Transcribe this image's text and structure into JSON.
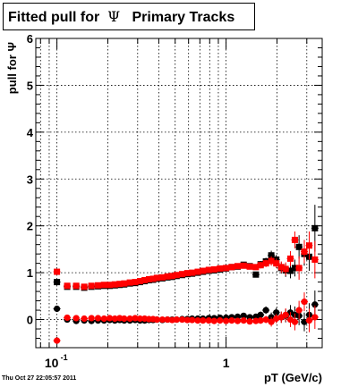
{
  "title": {
    "prefix": "Fitted pull for",
    "symbol": "Ψ",
    "suffix": "Primary Tracks"
  },
  "footer": {
    "date": "Thu Oct 27 22:05:57 2011"
  },
  "chart_data": {
    "type": "scatter",
    "title": "Fitted pull for Ψ Primary Tracks",
    "xlabel": "pT (GeV/c)",
    "ylabel": "pull for Ψ",
    "x_scale": "log",
    "xlim": [
      0.075,
      3.7
    ],
    "ylim": [
      -0.6,
      6
    ],
    "grid": true,
    "x_tick_labels": [
      {
        "value": 0.1,
        "base": "10",
        "exp": "-1"
      },
      {
        "value": 1,
        "base": "1",
        "exp": ""
      }
    ],
    "y_ticks": [
      0,
      1,
      2,
      3,
      4,
      5,
      6
    ],
    "series": [
      {
        "role": "sigma",
        "color": "#000000",
        "marker": "square",
        "points": [
          [
            0.1,
            0.8
          ],
          [
            0.115,
            0.7
          ],
          [
            0.13,
            0.7
          ],
          [
            0.145,
            0.68
          ],
          [
            0.16,
            0.7
          ],
          [
            0.175,
            0.71
          ],
          [
            0.19,
            0.72
          ],
          [
            0.205,
            0.72
          ],
          [
            0.22,
            0.73
          ],
          [
            0.235,
            0.74
          ],
          [
            0.25,
            0.75
          ],
          [
            0.27,
            0.77
          ],
          [
            0.29,
            0.78
          ],
          [
            0.31,
            0.8
          ],
          [
            0.33,
            0.82
          ],
          [
            0.35,
            0.84
          ],
          [
            0.37,
            0.85
          ],
          [
            0.39,
            0.87
          ],
          [
            0.42,
            0.88
          ],
          [
            0.45,
            0.9
          ],
          [
            0.48,
            0.91
          ],
          [
            0.51,
            0.93
          ],
          [
            0.55,
            0.95
          ],
          [
            0.59,
            0.97
          ],
          [
            0.63,
            0.98
          ],
          [
            0.68,
            1.0
          ],
          [
            0.73,
            1.02
          ],
          [
            0.79,
            1.04
          ],
          [
            0.85,
            1.05
          ],
          [
            0.92,
            1.07
          ],
          [
            1.0,
            1.09
          ],
          [
            1.08,
            1.12
          ],
          [
            1.17,
            1.13
          ],
          [
            1.27,
            1.17
          ],
          [
            1.38,
            1.14
          ],
          [
            1.5,
            0.96
          ],
          [
            1.6,
            1.18
          ],
          [
            1.72,
            1.24
          ],
          [
            1.85,
            1.37
          ],
          [
            1.98,
            1.28
          ],
          [
            2.12,
            1.1
          ],
          [
            2.25,
            1.05
          ],
          [
            2.4,
            1.04
          ],
          [
            2.55,
            1.1
          ],
          [
            2.7,
            1.55
          ],
          [
            2.9,
            1.4
          ],
          [
            3.1,
            1.34
          ],
          [
            3.35,
            1.95
          ]
        ],
        "err": [
          0.05,
          0.03,
          0.03,
          0.02,
          0.02,
          0.02,
          0.02,
          0.02,
          0.02,
          0.02,
          0.02,
          0.02,
          0.02,
          0.02,
          0.02,
          0.02,
          0.02,
          0.02,
          0.02,
          0.02,
          0.02,
          0.02,
          0.02,
          0.02,
          0.02,
          0.02,
          0.02,
          0.02,
          0.03,
          0.03,
          0.03,
          0.03,
          0.03,
          0.04,
          0.05,
          0.06,
          0.07,
          0.08,
          0.1,
          0.1,
          0.12,
          0.14,
          0.16,
          0.18,
          0.25,
          0.25,
          0.3,
          0.5
        ]
      },
      {
        "role": "sigma",
        "color": "#ff0000",
        "marker": "square",
        "points": [
          [
            0.1,
            1.02
          ],
          [
            0.115,
            0.72
          ],
          [
            0.13,
            0.72
          ],
          [
            0.145,
            0.7
          ],
          [
            0.16,
            0.72
          ],
          [
            0.175,
            0.73
          ],
          [
            0.19,
            0.74
          ],
          [
            0.205,
            0.74
          ],
          [
            0.22,
            0.75
          ],
          [
            0.235,
            0.76
          ],
          [
            0.25,
            0.77
          ],
          [
            0.27,
            0.79
          ],
          [
            0.29,
            0.8
          ],
          [
            0.31,
            0.82
          ],
          [
            0.33,
            0.84
          ],
          [
            0.35,
            0.86
          ],
          [
            0.37,
            0.87
          ],
          [
            0.39,
            0.89
          ],
          [
            0.42,
            0.9
          ],
          [
            0.45,
            0.92
          ],
          [
            0.48,
            0.93
          ],
          [
            0.51,
            0.95
          ],
          [
            0.55,
            0.97
          ],
          [
            0.59,
            0.99
          ],
          [
            0.63,
            1.0
          ],
          [
            0.68,
            1.02
          ],
          [
            0.73,
            1.04
          ],
          [
            0.79,
            1.06
          ],
          [
            0.85,
            1.07
          ],
          [
            0.92,
            1.09
          ],
          [
            1.0,
            1.1
          ],
          [
            1.08,
            1.12
          ],
          [
            1.17,
            1.14
          ],
          [
            1.27,
            1.15
          ],
          [
            1.38,
            1.13
          ],
          [
            1.5,
            1.12
          ],
          [
            1.6,
            1.16
          ],
          [
            1.72,
            1.2
          ],
          [
            1.85,
            1.25
          ],
          [
            1.98,
            1.2
          ],
          [
            2.12,
            1.12
          ],
          [
            2.25,
            1.08
          ],
          [
            2.4,
            1.3
          ],
          [
            2.55,
            1.7
          ],
          [
            2.7,
            1.1
          ],
          [
            2.9,
            1.45
          ],
          [
            3.1,
            1.58
          ],
          [
            3.35,
            1.28
          ]
        ],
        "err": [
          0.05,
          0.03,
          0.03,
          0.02,
          0.02,
          0.02,
          0.02,
          0.02,
          0.02,
          0.02,
          0.02,
          0.02,
          0.02,
          0.02,
          0.02,
          0.02,
          0.02,
          0.02,
          0.02,
          0.02,
          0.02,
          0.02,
          0.02,
          0.02,
          0.02,
          0.02,
          0.02,
          0.02,
          0.03,
          0.03,
          0.03,
          0.03,
          0.03,
          0.04,
          0.05,
          0.06,
          0.07,
          0.08,
          0.1,
          0.1,
          0.12,
          0.14,
          0.16,
          0.18,
          0.25,
          0.25,
          0.3,
          0.4
        ]
      },
      {
        "role": "mean",
        "color": "#000000",
        "marker": "circle",
        "points": [
          [
            0.1,
            0.23
          ],
          [
            0.115,
            0.0
          ],
          [
            0.13,
            -0.03
          ],
          [
            0.145,
            -0.02
          ],
          [
            0.16,
            -0.03
          ],
          [
            0.175,
            -0.02
          ],
          [
            0.19,
            -0.02
          ],
          [
            0.205,
            -0.01
          ],
          [
            0.22,
            -0.02
          ],
          [
            0.235,
            -0.01
          ],
          [
            0.25,
            -0.02
          ],
          [
            0.27,
            -0.02
          ],
          [
            0.29,
            -0.01
          ],
          [
            0.31,
            -0.02
          ],
          [
            0.33,
            -0.02
          ],
          [
            0.35,
            -0.01
          ],
          [
            0.37,
            -0.01
          ],
          [
            0.39,
            0.0
          ],
          [
            0.42,
            -0.01
          ],
          [
            0.45,
            0.0
          ],
          [
            0.48,
            0.0
          ],
          [
            0.51,
            0.0
          ],
          [
            0.55,
            0.01
          ],
          [
            0.59,
            0.01
          ],
          [
            0.63,
            0.02
          ],
          [
            0.68,
            0.02
          ],
          [
            0.73,
            0.02
          ],
          [
            0.79,
            0.03
          ],
          [
            0.85,
            0.03
          ],
          [
            0.92,
            0.04
          ],
          [
            1.0,
            0.04
          ],
          [
            1.08,
            0.05
          ],
          [
            1.17,
            0.06
          ],
          [
            1.27,
            0.08
          ],
          [
            1.38,
            0.05
          ],
          [
            1.5,
            0.06
          ],
          [
            1.6,
            0.1
          ],
          [
            1.72,
            0.2
          ],
          [
            1.85,
            0.05
          ],
          [
            1.98,
            0.15
          ],
          [
            2.12,
            0.05
          ],
          [
            2.25,
            0.08
          ],
          [
            2.4,
            0.15
          ],
          [
            2.55,
            0.1
          ],
          [
            2.7,
            0.08
          ],
          [
            2.9,
            -0.05
          ],
          [
            3.1,
            0.1
          ],
          [
            3.35,
            0.32
          ]
        ],
        "err": [
          0.04,
          0.03,
          0.03,
          0.02,
          0.02,
          0.02,
          0.02,
          0.02,
          0.02,
          0.02,
          0.02,
          0.02,
          0.02,
          0.02,
          0.02,
          0.02,
          0.02,
          0.02,
          0.02,
          0.02,
          0.02,
          0.02,
          0.02,
          0.02,
          0.02,
          0.02,
          0.02,
          0.02,
          0.03,
          0.03,
          0.03,
          0.03,
          0.03,
          0.04,
          0.05,
          0.06,
          0.07,
          0.08,
          0.1,
          0.1,
          0.12,
          0.14,
          0.16,
          0.18,
          0.2,
          0.2,
          0.25,
          0.3
        ]
      },
      {
        "role": "mean",
        "color": "#ff0000",
        "marker": "circle",
        "points": [
          [
            0.1,
            -0.45
          ],
          [
            0.115,
            0.04
          ],
          [
            0.13,
            0.03
          ],
          [
            0.145,
            0.02
          ],
          [
            0.16,
            0.03
          ],
          [
            0.175,
            0.03
          ],
          [
            0.19,
            0.02
          ],
          [
            0.205,
            0.03
          ],
          [
            0.22,
            0.02
          ],
          [
            0.235,
            0.03
          ],
          [
            0.25,
            0.02
          ],
          [
            0.27,
            0.02
          ],
          [
            0.29,
            0.03
          ],
          [
            0.31,
            0.02
          ],
          [
            0.33,
            0.02
          ],
          [
            0.35,
            0.01
          ],
          [
            0.37,
            0.01
          ],
          [
            0.39,
            0.0
          ],
          [
            0.42,
            0.0
          ],
          [
            0.45,
            0.0
          ],
          [
            0.48,
            -0.01
          ],
          [
            0.51,
            0.0
          ],
          [
            0.55,
            0.0
          ],
          [
            0.59,
            -0.01
          ],
          [
            0.63,
            -0.01
          ],
          [
            0.68,
            -0.02
          ],
          [
            0.73,
            -0.02
          ],
          [
            0.79,
            -0.02
          ],
          [
            0.85,
            -0.03
          ],
          [
            0.92,
            -0.02
          ],
          [
            1.0,
            -0.03
          ],
          [
            1.08,
            -0.02
          ],
          [
            1.17,
            -0.03
          ],
          [
            1.27,
            -0.02
          ],
          [
            1.38,
            -0.04
          ],
          [
            1.5,
            -0.03
          ],
          [
            1.6,
            -0.02
          ],
          [
            1.72,
            0.0
          ],
          [
            1.85,
            -0.05
          ],
          [
            1.98,
            0.02
          ],
          [
            2.12,
            0.05
          ],
          [
            2.25,
            0.1
          ],
          [
            2.4,
            0.0
          ],
          [
            2.55,
            -0.05
          ],
          [
            2.7,
            0.2
          ],
          [
            2.9,
            0.38
          ],
          [
            3.1,
            -0.02
          ],
          [
            3.35,
            0.05
          ]
        ],
        "err": [
          0.04,
          0.03,
          0.03,
          0.02,
          0.02,
          0.02,
          0.02,
          0.02,
          0.02,
          0.02,
          0.02,
          0.02,
          0.02,
          0.02,
          0.02,
          0.02,
          0.02,
          0.02,
          0.02,
          0.02,
          0.02,
          0.02,
          0.02,
          0.02,
          0.02,
          0.02,
          0.02,
          0.02,
          0.03,
          0.03,
          0.03,
          0.03,
          0.03,
          0.04,
          0.05,
          0.06,
          0.07,
          0.08,
          0.1,
          0.1,
          0.12,
          0.14,
          0.16,
          0.18,
          0.2,
          0.2,
          0.25,
          0.25
        ]
      }
    ]
  }
}
